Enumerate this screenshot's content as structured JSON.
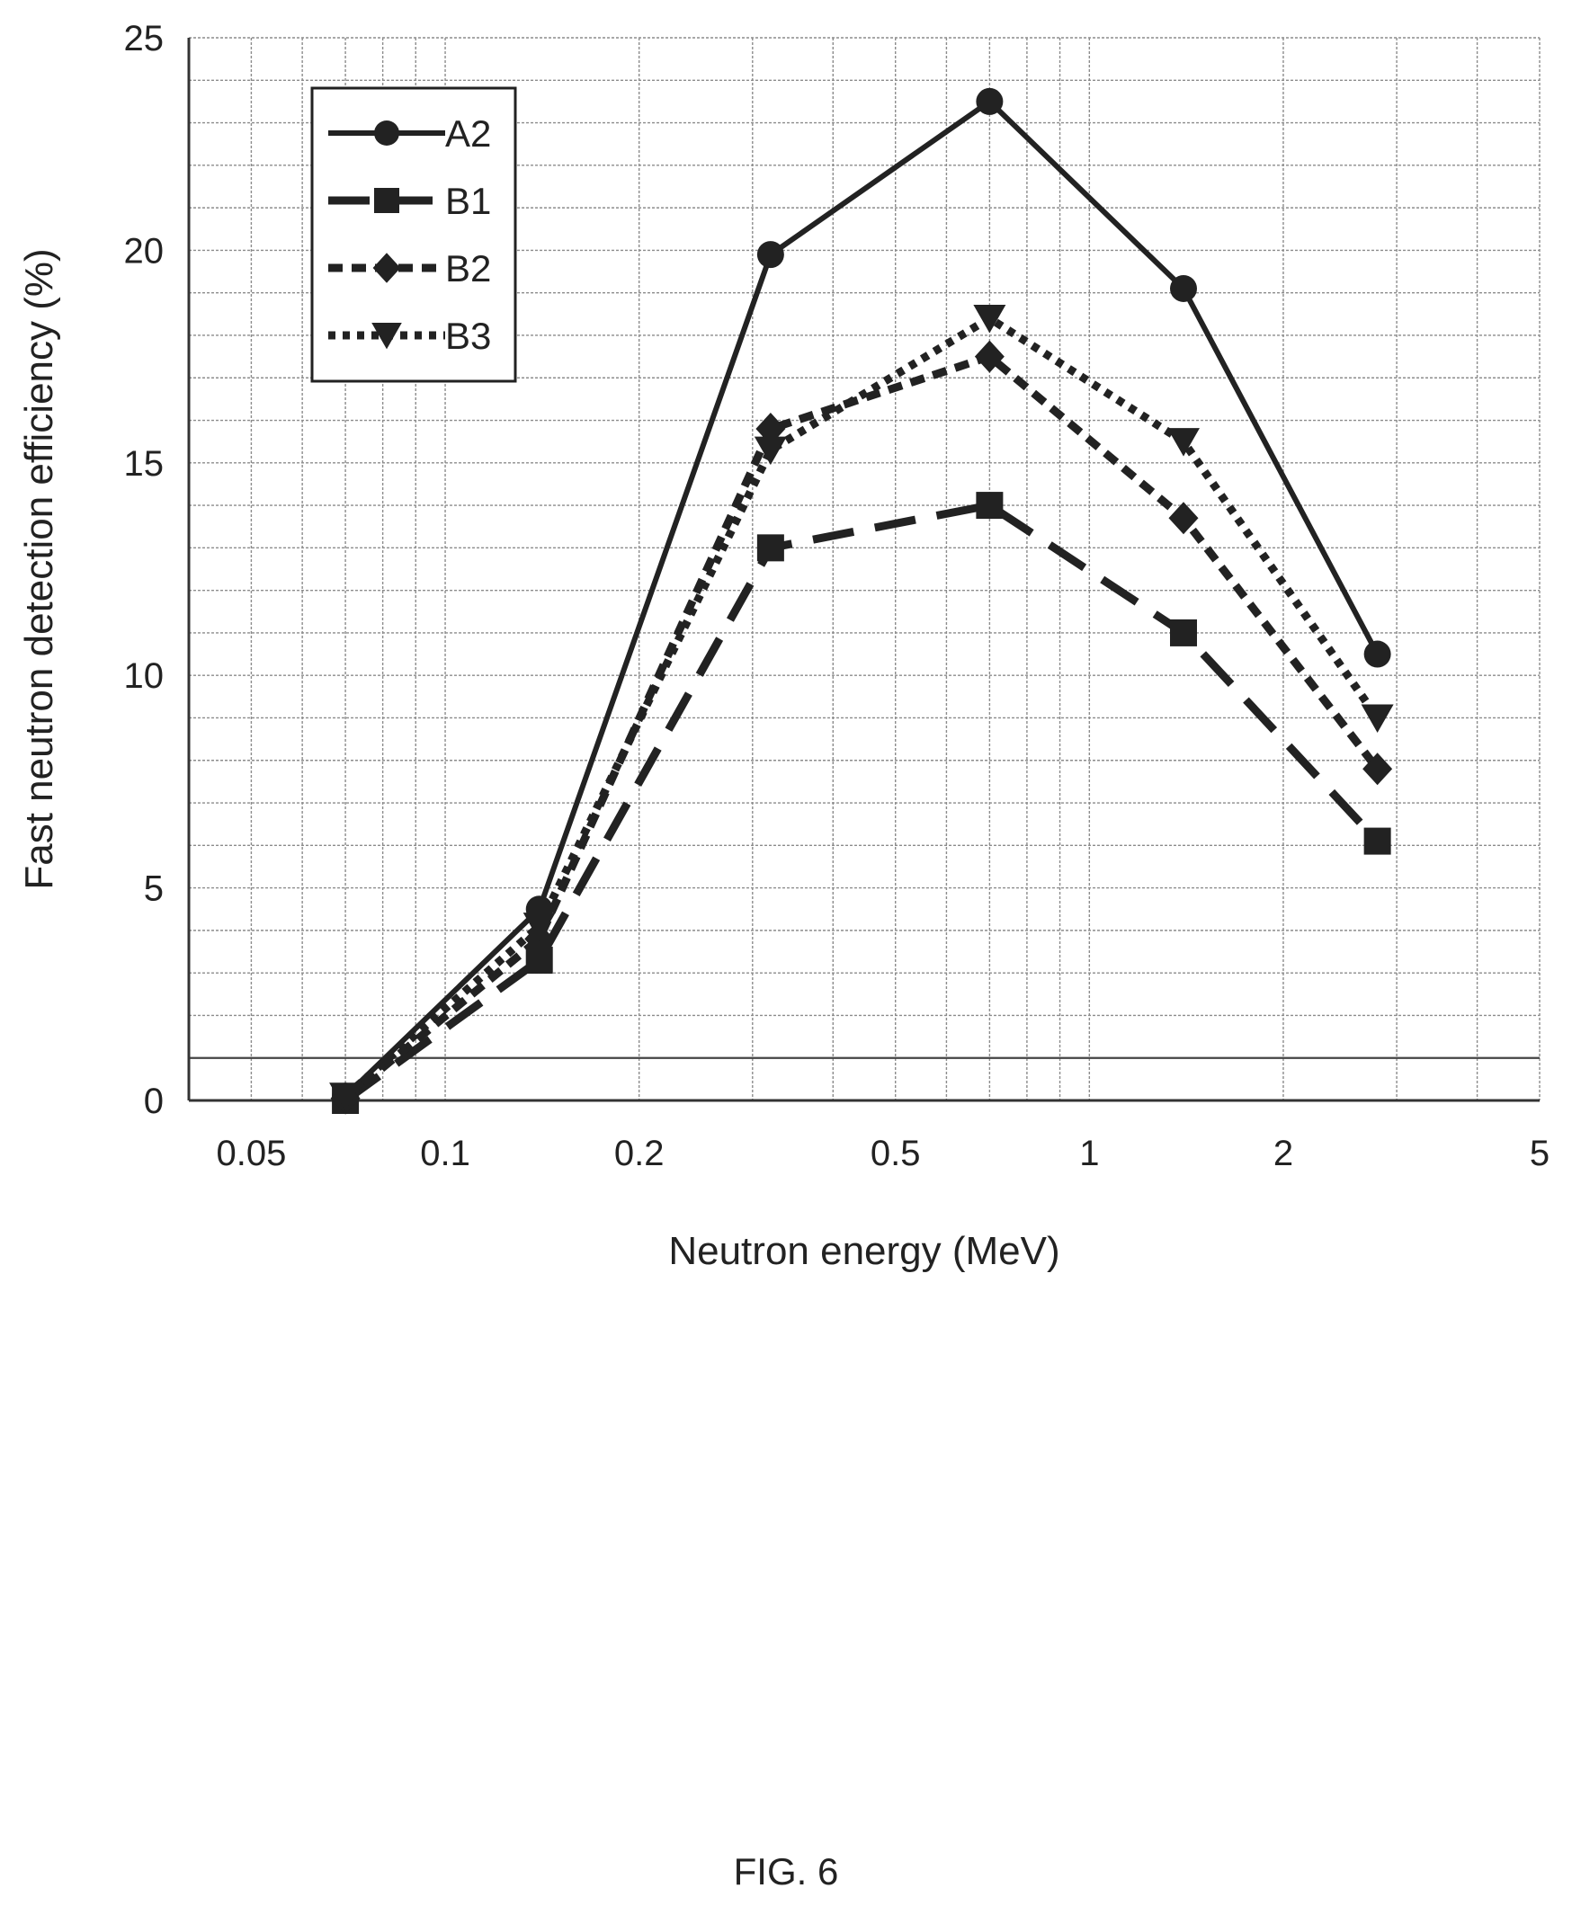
{
  "chart_data": {
    "type": "line",
    "xlabel": "Neutron energy (MeV)",
    "ylabel": "Fast  neutron detection efficiency (%)",
    "xscale": "log",
    "xlim": [
      0.04,
      5
    ],
    "ylim": [
      0,
      25
    ],
    "xticks": [
      0.05,
      0.1,
      0.2,
      0.5,
      1,
      2,
      5
    ],
    "xtick_labels": [
      "0.05",
      "0.1",
      "0.2",
      "0.5",
      "1",
      "2",
      "5"
    ],
    "yticks": [
      0,
      5,
      10,
      15,
      20,
      25
    ],
    "ytick_labels": [
      "0",
      "5",
      "10",
      "15",
      "20",
      "25"
    ],
    "grid": true,
    "legend_position": "top-left",
    "x": [
      0.07,
      0.14,
      0.32,
      0.7,
      1.4,
      2.8
    ],
    "series": [
      {
        "name": "A2",
        "marker": "circle",
        "line_style": "solid",
        "values": [
          0.1,
          4.5,
          19.9,
          23.5,
          19.1,
          10.5
        ]
      },
      {
        "name": "B1",
        "marker": "square",
        "line_style": "dash",
        "values": [
          0.0,
          3.3,
          13.0,
          14.0,
          11.0,
          6.1
        ]
      },
      {
        "name": "B2",
        "marker": "diamond",
        "line_style": "short-dash",
        "values": [
          0.05,
          3.8,
          15.8,
          17.5,
          13.7,
          7.8
        ]
      },
      {
        "name": "B3",
        "marker": "triangle-down",
        "line_style": "dot",
        "values": [
          0.1,
          4.1,
          15.3,
          18.4,
          15.5,
          9.0
        ]
      }
    ]
  },
  "caption": "FIG. 6"
}
